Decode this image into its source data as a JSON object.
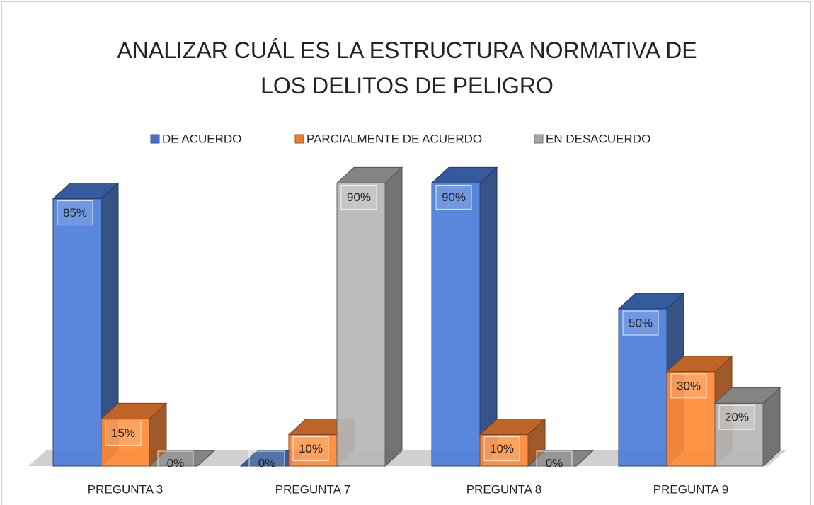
{
  "chart_data": {
    "type": "bar3d",
    "title": "ANALIZAR CUÁL ES LA ESTRUCTURA NORMATIVA DE LOS DELITOS DE PELIGRO",
    "categories": [
      "PREGUNTA 3",
      "PREGUNTA 7",
      "PREGUNTA 8",
      "PREGUNTA 9"
    ],
    "series": [
      {
        "name": "DE ACUERDO",
        "color": "#4472c4",
        "values": [
          85,
          0,
          90,
          50
        ],
        "value_labels": [
          "85%",
          "0%",
          "90%",
          "50%"
        ]
      },
      {
        "name": "PARCIALMENTE DE ACUERDO",
        "color": "#ed7d31",
        "values": [
          15,
          10,
          10,
          30
        ],
        "value_labels": [
          "15%",
          "10%",
          "10%",
          "30%"
        ]
      },
      {
        "name": "EN DESACUERDO",
        "color": "#a5a5a5",
        "values": [
          0,
          90,
          0,
          20
        ],
        "value_labels": [
          "0%",
          "90%",
          "0%",
          "20%"
        ]
      }
    ],
    "ylim": [
      0,
      100
    ],
    "legend": "top"
  }
}
